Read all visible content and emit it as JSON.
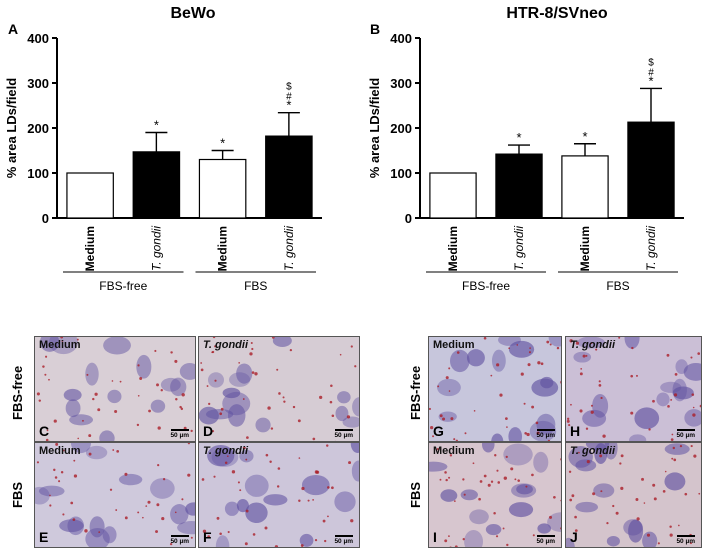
{
  "chart_data": [
    {
      "type": "bar",
      "panel_letter": "A",
      "title": "BeWo",
      "ylabel": "% area LDs/field",
      "ylim": [
        0,
        400
      ],
      "yticks": [
        0,
        100,
        200,
        300,
        400
      ],
      "categories": [
        "Medium",
        "T. gondii",
        "Medium",
        "T. gondii"
      ],
      "italic_categories": [
        false,
        true,
        false,
        true
      ],
      "values": [
        100,
        147,
        130,
        182
      ],
      "errors": [
        0,
        43,
        20,
        52
      ],
      "bar_fill": [
        "#ffffff",
        "#000000",
        "#ffffff",
        "#000000"
      ],
      "annotations": [
        [],
        [
          "*"
        ],
        [
          "*"
        ],
        [
          "*",
          "#",
          "$"
        ]
      ],
      "groups": [
        {
          "label": "FBS-free",
          "span": [
            0,
            1
          ]
        },
        {
          "label": "FBS",
          "span": [
            2,
            3
          ]
        }
      ]
    },
    {
      "type": "bar",
      "panel_letter": "B",
      "title": "HTR-8/SVneo",
      "ylabel": "% area LDs/field",
      "ylim": [
        0,
        400
      ],
      "yticks": [
        0,
        100,
        200,
        300,
        400
      ],
      "categories": [
        "Medium",
        "T. gondii",
        "Medium",
        "T. gondii"
      ],
      "italic_categories": [
        false,
        true,
        false,
        true
      ],
      "values": [
        100,
        142,
        138,
        213
      ],
      "errors": [
        0,
        20,
        27,
        75
      ],
      "bar_fill": [
        "#ffffff",
        "#000000",
        "#ffffff",
        "#000000"
      ],
      "annotations": [
        [],
        [
          "*"
        ],
        [
          "*"
        ],
        [
          "*",
          "#",
          "$"
        ]
      ],
      "groups": [
        {
          "label": "FBS-free",
          "span": [
            0,
            1
          ]
        },
        {
          "label": "FBS",
          "span": [
            2,
            3
          ]
        }
      ]
    }
  ],
  "micrographs": {
    "row_labels": [
      "FBS-free",
      "FBS",
      "FBS-free",
      "FBS"
    ],
    "scale_bar": "50 µm",
    "panels": [
      {
        "letter": "C",
        "label": "Medium",
        "italic": false,
        "bg": "#d9cfd6"
      },
      {
        "letter": "D",
        "label": "T. gondii",
        "italic": true,
        "bg": "#d6ccd4"
      },
      {
        "letter": "E",
        "label": "Medium",
        "italic": false,
        "bg": "#cfc9dc"
      },
      {
        "letter": "F",
        "label": "T. gondii",
        "italic": true,
        "bg": "#cdc6da"
      },
      {
        "letter": "G",
        "label": "Medium",
        "italic": false,
        "bg": "#c7c6dc"
      },
      {
        "letter": "H",
        "label": "T. gondii",
        "italic": true,
        "bg": "#cbbfd6"
      },
      {
        "letter": "I",
        "label": "Medium",
        "italic": false,
        "bg": "#d7c6cf"
      },
      {
        "letter": "J",
        "label": "T. gondii",
        "italic": true,
        "bg": "#d4c4cc"
      }
    ]
  }
}
